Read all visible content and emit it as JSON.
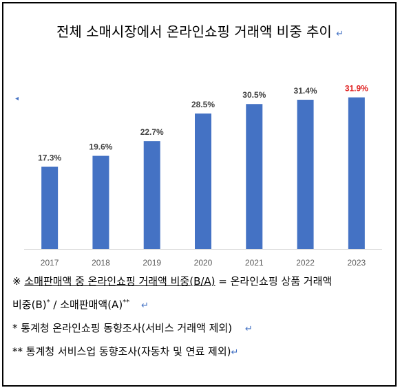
{
  "title": "전체 소매시장에서 온라인쇼핑 거래액 비중 추이",
  "chart_data": {
    "type": "bar",
    "title": "전체 소매시장에서 온라인쇼핑 거래액 비중 추이",
    "categories": [
      "2017",
      "2018",
      "2019",
      "2020",
      "2021",
      "2022",
      "2023"
    ],
    "values": [
      17.3,
      19.6,
      22.7,
      28.5,
      30.5,
      31.4,
      31.9
    ],
    "labels": [
      "17.3%",
      "19.6%",
      "22.7%",
      "28.5%",
      "30.5%",
      "31.4%",
      "31.9%"
    ],
    "ylim": [
      0,
      35
    ],
    "grid": false,
    "bar_color": "#4472c4",
    "label_color": "#404040",
    "highlight_label_color": "#e02020",
    "highlight_index": 6
  },
  "notes": {
    "line1_prefix": "※ ",
    "line1_underlined": "소매판매액 중 온라인쇼핑 거래액 비중(B/A)",
    "line1_rest": " = 온라인쇼핑 상품 거래액",
    "line2_a": "비중(B)",
    "line2_sup1": "*",
    "line2_b": " / 소매판매액(A)",
    "line2_sup2": "**",
    "line3": "* 통계청 온라인쇼핑 동향조사(서비스 거래액 제외)",
    "line4": "** 통계청 서비스업 동향조사(자동차 및 연료 제외)",
    "return_mark": "↵"
  }
}
